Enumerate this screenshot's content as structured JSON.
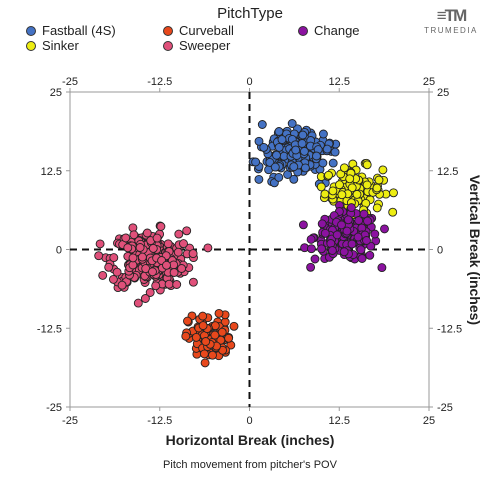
{
  "legend": {
    "title": "PitchType",
    "items": [
      {
        "label": "Fastball (4S)",
        "color": "#4472C4"
      },
      {
        "label": "Curveball",
        "color": "#E8481C"
      },
      {
        "label": "Change",
        "color": "#8B12A0"
      },
      {
        "label": "Sinker",
        "color": "#EDED12"
      },
      {
        "label": "Sweeper",
        "color": "#E0507A"
      }
    ]
  },
  "brand": {
    "logo_text": "≡TM",
    "name": "TRUMEDIA"
  },
  "chart_data": {
    "type": "scatter",
    "xlabel": "Horizontal Break (inches)",
    "ylabel": "Vertical Break (inches)",
    "caption": "Pitch movement from pitcher's POV",
    "xlim": [
      -25,
      25
    ],
    "ylim": [
      -25,
      25
    ],
    "xticks": [
      -25,
      -12.5,
      0,
      12.5,
      25
    ],
    "yticks": [
      -25,
      -12.5,
      0,
      12.5,
      25
    ],
    "tick_labels": [
      "-25",
      "-12.5",
      "0",
      "12.5",
      "25"
    ],
    "zero_lines": "dashed",
    "legend_position": "top",
    "series": [
      {
        "name": "Fastball (4S)",
        "color": "#4472C4",
        "center": [
          6.5,
          15.5
        ],
        "spread": [
          2.6,
          1.9
        ],
        "x_range": [
          0.5,
          12
        ],
        "y_range": [
          10,
          20
        ],
        "count": 220
      },
      {
        "name": "Sinker",
        "color": "#EDED12",
        "center": [
          14.5,
          9.5
        ],
        "spread": [
          2.0,
          1.8
        ],
        "x_range": [
          10,
          20.5
        ],
        "y_range": [
          4.5,
          14.5
        ],
        "count": 130
      },
      {
        "name": "Change",
        "color": "#8B12A0",
        "center": [
          13.5,
          2.0
        ],
        "spread": [
          2.2,
          1.9
        ],
        "x_range": [
          7.5,
          20
        ],
        "y_range": [
          -3,
          7
        ],
        "count": 190
      },
      {
        "name": "Sweeper",
        "color": "#E0507A",
        "center": [
          -14.0,
          -1.5
        ],
        "spread": [
          2.6,
          2.2
        ],
        "x_range": [
          -21,
          -5
        ],
        "y_range": [
          -8.5,
          6.5
        ],
        "count": 300
      },
      {
        "name": "Curveball",
        "color": "#E8481C",
        "center": [
          -5.5,
          -14.0
        ],
        "spread": [
          1.5,
          1.8
        ],
        "x_range": [
          -11,
          2
        ],
        "y_range": [
          -19,
          -7
        ],
        "count": 90
      }
    ]
  },
  "ui": {
    "caption": "Pitch movement from pitcher's POV"
  }
}
